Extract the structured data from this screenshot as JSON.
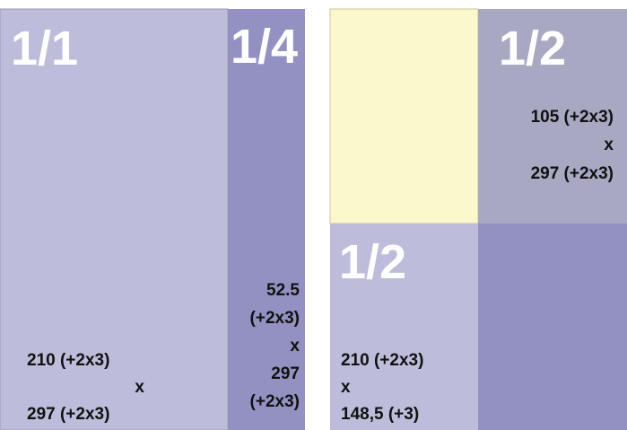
{
  "left": {
    "full": {
      "label": "1/1",
      "dims": [
        "210 (+2x3)",
        "x",
        "297 (+2x3)"
      ]
    },
    "quarter": {
      "label": "1/4",
      "dims": [
        "52.5",
        "(+2x3)",
        "x",
        "297",
        "(+2x3)"
      ]
    }
  },
  "right": {
    "half_vertical": {
      "label": "1/2",
      "dims": [
        "105 (+2x3)",
        "x",
        "297 (+2x3)"
      ]
    },
    "half_horizontal": {
      "label": "1/2",
      "dims": [
        "210 (+2x3)",
        "x",
        "148,5 (+3)"
      ]
    }
  }
}
